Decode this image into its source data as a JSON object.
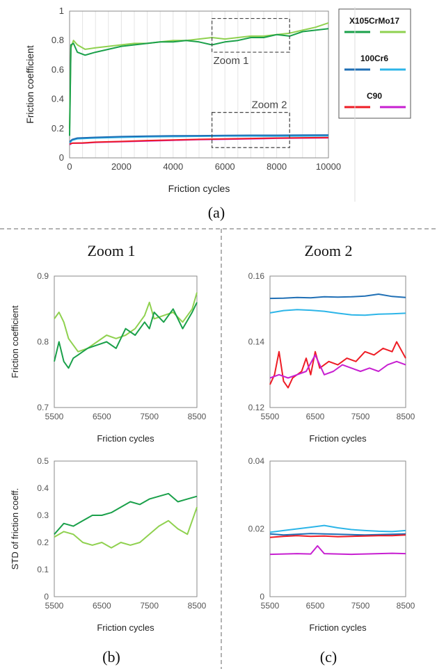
{
  "captions": {
    "a": "(a)",
    "b": "(b)",
    "c": "(c)"
  },
  "titles": {
    "zoom1": "Zoom 1",
    "zoom2": "Zoom 2"
  },
  "legend": [
    {
      "name": "X105CrMo17",
      "colors": [
        "#1aa04a",
        "#8fd14f"
      ]
    },
    {
      "name": "100Cr6",
      "colors": [
        "#1f6fb5",
        "#2cb5e8"
      ]
    },
    {
      "name": "C90",
      "colors": [
        "#ee1c25",
        "#c71fd1"
      ]
    }
  ],
  "chart_data": [
    {
      "id": "a",
      "type": "line",
      "xlabel": "Friction cycles",
      "ylabel": "Friction coefficient",
      "xlim": [
        0,
        10000
      ],
      "ylim": [
        0,
        1
      ],
      "xticks": [
        0,
        2000,
        4000,
        6000,
        8000,
        10000
      ],
      "yticks": [
        0,
        0.2,
        0.4,
        0.6,
        0.8,
        1
      ],
      "yticklabels": [
        "0",
        "0.2",
        "0.4",
        "0.6",
        "0.8",
        "1"
      ],
      "grid": "vertical",
      "annotations": [
        {
          "text": "Zoom 1",
          "box_x": [
            5500,
            8500
          ],
          "box_y": [
            0.72,
            0.95
          ]
        },
        {
          "text": "Zoom 2",
          "box_x": [
            5500,
            8500
          ],
          "box_y": [
            0.07,
            0.31
          ]
        }
      ],
      "series": [
        {
          "color": "#8fd14f",
          "x": [
            0,
            50,
            150,
            300,
            600,
            1000,
            1500,
            2000,
            2500,
            3000,
            3500,
            4000,
            4500,
            5000,
            5500,
            6000,
            6500,
            7000,
            7500,
            8000,
            8500,
            9000,
            9500,
            10000
          ],
          "y": [
            0.2,
            0.75,
            0.8,
            0.77,
            0.74,
            0.75,
            0.76,
            0.77,
            0.78,
            0.78,
            0.79,
            0.8,
            0.8,
            0.81,
            0.82,
            0.81,
            0.82,
            0.83,
            0.83,
            0.84,
            0.85,
            0.87,
            0.89,
            0.92
          ]
        },
        {
          "color": "#1aa04a",
          "x": [
            0,
            50,
            150,
            300,
            600,
            1000,
            1500,
            2000,
            2500,
            3000,
            3500,
            4000,
            4500,
            5000,
            5500,
            6000,
            6500,
            7000,
            7500,
            8000,
            8500,
            9000,
            9500,
            10000
          ],
          "y": [
            0.15,
            0.77,
            0.78,
            0.72,
            0.7,
            0.72,
            0.74,
            0.76,
            0.77,
            0.78,
            0.79,
            0.79,
            0.8,
            0.79,
            0.77,
            0.79,
            0.8,
            0.82,
            0.82,
            0.84,
            0.83,
            0.86,
            0.87,
            0.88
          ]
        },
        {
          "color": "#2cb5e8",
          "x": [
            0,
            100,
            300,
            1000,
            2000,
            3000,
            4000,
            5000,
            6000,
            7000,
            8000,
            9000,
            10000
          ],
          "y": [
            0.1,
            0.12,
            0.13,
            0.135,
            0.14,
            0.143,
            0.145,
            0.147,
            0.149,
            0.149,
            0.148,
            0.149,
            0.15
          ]
        },
        {
          "color": "#1f6fb5",
          "x": [
            0,
            100,
            300,
            1000,
            2000,
            3000,
            4000,
            5000,
            6000,
            7000,
            8000,
            9000,
            10000
          ],
          "y": [
            0.11,
            0.125,
            0.135,
            0.14,
            0.145,
            0.148,
            0.15,
            0.151,
            0.153,
            0.154,
            0.154,
            0.155,
            0.156
          ]
        },
        {
          "color": "#c71fd1",
          "x": [
            0,
            100,
            500,
            1000,
            2000,
            3000,
            4000,
            5000,
            6000,
            7000,
            8000,
            9000,
            10000
          ],
          "y": [
            0.09,
            0.1,
            0.1,
            0.105,
            0.11,
            0.115,
            0.12,
            0.124,
            0.127,
            0.13,
            0.133,
            0.135,
            0.136
          ]
        },
        {
          "color": "#ee1c25",
          "x": [
            0,
            100,
            500,
            1000,
            2000,
            3000,
            4000,
            5000,
            6000,
            7000,
            8000,
            9000,
            10000
          ],
          "y": [
            0.095,
            0.1,
            0.102,
            0.107,
            0.112,
            0.118,
            0.122,
            0.126,
            0.129,
            0.132,
            0.135,
            0.137,
            0.139
          ]
        }
      ]
    },
    {
      "id": "b-top",
      "type": "line",
      "xlabel": "Friction cycles",
      "ylabel": "Friction coefficient",
      "xlim": [
        5500,
        8500
      ],
      "ylim": [
        0.7,
        0.9
      ],
      "xticks": [
        5500,
        6500,
        7500,
        8500
      ],
      "yticks": [
        0.7,
        0.8,
        0.9
      ],
      "yticklabels": [
        "0.7",
        "0.8",
        "0.9"
      ],
      "series": [
        {
          "color": "#8fd14f",
          "x": [
            5500,
            5600,
            5700,
            5800,
            5900,
            6000,
            6200,
            6400,
            6600,
            6800,
            7000,
            7200,
            7400,
            7500,
            7600,
            7800,
            8000,
            8200,
            8400,
            8500
          ],
          "y": [
            0.835,
            0.845,
            0.83,
            0.805,
            0.795,
            0.785,
            0.79,
            0.8,
            0.81,
            0.805,
            0.81,
            0.82,
            0.84,
            0.86,
            0.835,
            0.84,
            0.845,
            0.83,
            0.85,
            0.875
          ]
        },
        {
          "color": "#1aa04a",
          "x": [
            5500,
            5600,
            5700,
            5800,
            5900,
            6000,
            6200,
            6400,
            6600,
            6800,
            7000,
            7200,
            7400,
            7500,
            7600,
            7800,
            8000,
            8200,
            8400,
            8500
          ],
          "y": [
            0.77,
            0.8,
            0.77,
            0.76,
            0.775,
            0.78,
            0.79,
            0.795,
            0.8,
            0.79,
            0.82,
            0.81,
            0.83,
            0.82,
            0.845,
            0.83,
            0.85,
            0.82,
            0.845,
            0.86
          ]
        }
      ]
    },
    {
      "id": "b-bottom",
      "type": "line",
      "xlabel": "Friction cycles",
      "ylabel": "STD of friction coeff.",
      "xlim": [
        5500,
        8500
      ],
      "ylim": [
        0,
        0.5
      ],
      "xticks": [
        5500,
        6500,
        7500,
        8500
      ],
      "yticks": [
        0,
        0.1,
        0.2,
        0.3,
        0.4,
        0.5
      ],
      "yticklabels": [
        "0",
        "0.1",
        "0.2",
        "0.3",
        "0.4",
        "0.5"
      ],
      "series": [
        {
          "color": "#1aa04a",
          "x": [
            5500,
            5700,
            5900,
            6100,
            6300,
            6500,
            6700,
            6900,
            7100,
            7300,
            7500,
            7700,
            7900,
            8100,
            8300,
            8500
          ],
          "y": [
            0.23,
            0.27,
            0.26,
            0.28,
            0.3,
            0.3,
            0.31,
            0.33,
            0.35,
            0.34,
            0.36,
            0.37,
            0.38,
            0.35,
            0.36,
            0.37
          ]
        },
        {
          "color": "#8fd14f",
          "x": [
            5500,
            5700,
            5900,
            6100,
            6300,
            6500,
            6700,
            6900,
            7100,
            7300,
            7500,
            7700,
            7900,
            8100,
            8300,
            8500
          ],
          "y": [
            0.22,
            0.24,
            0.23,
            0.2,
            0.19,
            0.2,
            0.18,
            0.2,
            0.19,
            0.2,
            0.23,
            0.26,
            0.28,
            0.25,
            0.23,
            0.33
          ]
        }
      ]
    },
    {
      "id": "c-top",
      "type": "line",
      "xlabel": "Friction cycles",
      "ylabel": "",
      "xlim": [
        5500,
        8500
      ],
      "ylim": [
        0.12,
        0.16
      ],
      "xticks": [
        5500,
        6500,
        7500,
        8500
      ],
      "yticks": [
        0.12,
        0.14,
        0.16
      ],
      "yticklabels": [
        "0.12",
        "0.14",
        "0.16"
      ],
      "series": [
        {
          "color": "#1f6fb5",
          "x": [
            5500,
            5800,
            6100,
            6400,
            6700,
            7000,
            7300,
            7600,
            7900,
            8200,
            8500
          ],
          "y": [
            0.1532,
            0.1533,
            0.1535,
            0.1534,
            0.1537,
            0.1536,
            0.1537,
            0.1539,
            0.1545,
            0.1538,
            0.1535
          ]
        },
        {
          "color": "#2cb5e8",
          "x": [
            5500,
            5800,
            6100,
            6400,
            6700,
            7000,
            7300,
            7600,
            7900,
            8200,
            8500
          ],
          "y": [
            0.1488,
            0.1495,
            0.1498,
            0.1496,
            0.1493,
            0.1487,
            0.1482,
            0.1481,
            0.1484,
            0.1485,
            0.1487
          ]
        },
        {
          "color": "#ee1c25",
          "x": [
            5500,
            5600,
            5700,
            5800,
            5900,
            6000,
            6200,
            6300,
            6400,
            6500,
            6600,
            6800,
            7000,
            7200,
            7400,
            7600,
            7800,
            8000,
            8200,
            8300,
            8500
          ],
          "y": [
            0.127,
            0.13,
            0.137,
            0.128,
            0.126,
            0.129,
            0.131,
            0.135,
            0.13,
            0.137,
            0.132,
            0.134,
            0.133,
            0.135,
            0.134,
            0.137,
            0.136,
            0.138,
            0.137,
            0.14,
            0.135
          ]
        },
        {
          "color": "#c71fd1",
          "x": [
            5500,
            5700,
            5900,
            6100,
            6300,
            6500,
            6700,
            6900,
            7100,
            7300,
            7500,
            7700,
            7900,
            8100,
            8300,
            8500
          ],
          "y": [
            0.129,
            0.13,
            0.129,
            0.13,
            0.131,
            0.136,
            0.13,
            0.131,
            0.133,
            0.132,
            0.131,
            0.132,
            0.131,
            0.133,
            0.134,
            0.133
          ]
        }
      ]
    },
    {
      "id": "c-bottom",
      "type": "line",
      "xlabel": "Friction cycles",
      "ylabel": "",
      "xlim": [
        5500,
        8500
      ],
      "ylim": [
        0,
        0.04
      ],
      "xticks": [
        5500,
        6500,
        7500,
        8500
      ],
      "yticks": [
        0,
        0.02,
        0.04
      ],
      "yticklabels": [
        "0",
        "0.02",
        "0.04"
      ],
      "series": [
        {
          "color": "#2cb5e8",
          "x": [
            5500,
            5800,
            6100,
            6400,
            6700,
            7000,
            7300,
            7600,
            7900,
            8200,
            8500
          ],
          "y": [
            0.019,
            0.0195,
            0.02,
            0.0205,
            0.021,
            0.0203,
            0.0198,
            0.0195,
            0.0193,
            0.0192,
            0.0195
          ]
        },
        {
          "color": "#1f6fb5",
          "x": [
            5500,
            5800,
            6100,
            6400,
            6700,
            7000,
            7300,
            7600,
            7900,
            8200,
            8500
          ],
          "y": [
            0.0185,
            0.0182,
            0.0184,
            0.0186,
            0.0185,
            0.0184,
            0.0183,
            0.0182,
            0.0183,
            0.0184,
            0.0185
          ]
        },
        {
          "color": "#ee1c25",
          "x": [
            5500,
            5800,
            6100,
            6400,
            6700,
            7000,
            7300,
            7600,
            7900,
            8200,
            8500
          ],
          "y": [
            0.0175,
            0.0178,
            0.018,
            0.0178,
            0.0179,
            0.0177,
            0.0178,
            0.0179,
            0.018,
            0.018,
            0.0182
          ]
        },
        {
          "color": "#c71fd1",
          "x": [
            5500,
            5800,
            6100,
            6400,
            6550,
            6700,
            7000,
            7300,
            7600,
            7900,
            8200,
            8500
          ],
          "y": [
            0.0125,
            0.0126,
            0.0127,
            0.0126,
            0.015,
            0.0127,
            0.0126,
            0.0125,
            0.0126,
            0.0127,
            0.0128,
            0.0127
          ]
        }
      ]
    }
  ]
}
